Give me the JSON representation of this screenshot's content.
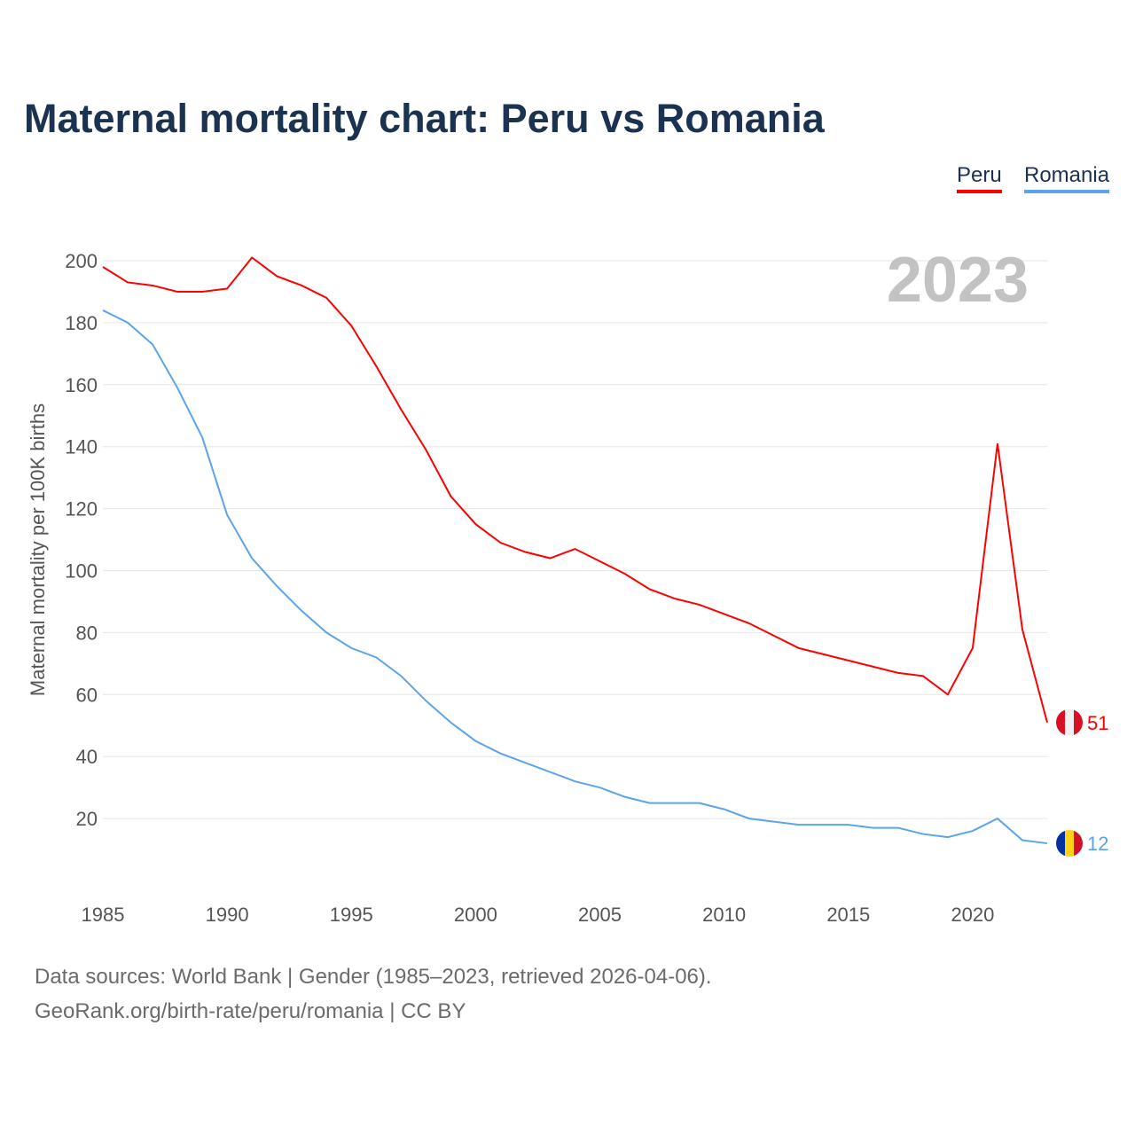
{
  "chart_data": {
    "type": "line",
    "title": "Maternal mortality chart: Peru vs Romania",
    "xlabel": "",
    "ylabel": "Maternal mortality per 100K births",
    "year_label": "2023",
    "xlim": [
      1985,
      2023
    ],
    "ylim": [
      0,
      200
    ],
    "x_ticks": [
      1985,
      1990,
      1995,
      2000,
      2005,
      2010,
      2015,
      2020
    ],
    "y_ticks": [
      20,
      40,
      60,
      80,
      100,
      120,
      140,
      160,
      180,
      200
    ],
    "grid": true,
    "legend_position": "top-right",
    "x": [
      1985,
      1986,
      1987,
      1988,
      1989,
      1990,
      1991,
      1992,
      1993,
      1994,
      1995,
      1996,
      1997,
      1998,
      1999,
      2000,
      2001,
      2002,
      2003,
      2004,
      2005,
      2006,
      2007,
      2008,
      2009,
      2010,
      2011,
      2012,
      2013,
      2014,
      2015,
      2016,
      2017,
      2018,
      2019,
      2020,
      2021,
      2022,
      2023
    ],
    "series": [
      {
        "name": "Peru",
        "color": "#ff0000",
        "end_label": "51",
        "values": [
          198,
          193,
          192,
          190,
          190,
          191,
          201,
          195,
          192,
          188,
          179,
          166,
          152,
          139,
          124,
          115,
          109,
          106,
          104,
          107,
          103,
          99,
          94,
          91,
          89,
          86,
          83,
          79,
          75,
          73,
          71,
          69,
          67,
          66,
          60,
          75,
          141,
          81,
          51
        ]
      },
      {
        "name": "Romania",
        "color": "#5ba4ec",
        "end_label": "12",
        "values": [
          184,
          180,
          173,
          159,
          143,
          118,
          104,
          95,
          87,
          80,
          75,
          72,
          66,
          58,
          51,
          45,
          41,
          38,
          35,
          32,
          30,
          27,
          25,
          25,
          25,
          23,
          20,
          19,
          18,
          18,
          18,
          17,
          17,
          15,
          14,
          16,
          20,
          13,
          12
        ]
      }
    ]
  },
  "footer": {
    "line1": "Data sources: World Bank | Gender (1985–2023, retrieved 2026-04-06).",
    "line2": "GeoRank.org/birth-rate/peru/romania | CC BY"
  }
}
